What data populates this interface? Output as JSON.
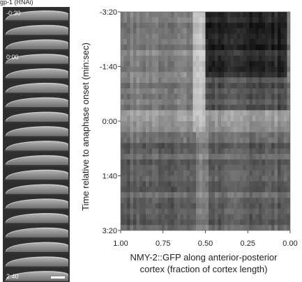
{
  "figure": {
    "corner_label": "gp-1 (RNAi)",
    "strip_timestamps": [
      "-0:30",
      "0:00",
      "2:40"
    ]
  },
  "chart_data": {
    "type": "heatmap",
    "title": "",
    "xlabel": "NMY-2::GFP along anterior-posterior cortex (fraction of cortex length)",
    "xlabel_lines": [
      "NMY-2::GFP along anterior-posterior",
      "cortex (fraction of cortex length)"
    ],
    "ylabel": "Time relative to anaphase onset  (min:sec)",
    "x_ticks": [
      1.0,
      0.75,
      0.5,
      0.25,
      0.0
    ],
    "x_tick_labels": [
      "1.00",
      "0.75",
      "0.50",
      "0.25",
      "0.00"
    ],
    "xlim": [
      1.0,
      0.0
    ],
    "y_ticks": [
      -200,
      -100,
      0,
      100,
      200
    ],
    "y_tick_labels": [
      "-3:20",
      "-1:40",
      "0:00",
      "1:40",
      "3:20"
    ],
    "ylim": [
      -200,
      200
    ],
    "y_units": "seconds",
    "colormap": "grayscale",
    "features": [
      {
        "description": "bright band",
        "x_range": [
          0.58,
          0.5
        ],
        "t_range": [
          -200,
          20
        ]
      },
      {
        "description": "dark region",
        "x_range": [
          0.5,
          0.02
        ],
        "t_range": [
          -200,
          -80
        ]
      },
      {
        "description": "bright band",
        "x_range": [
          1.0,
          0.0
        ],
        "t_range": [
          -20,
          20
        ]
      }
    ]
  },
  "colors": {
    "background": "#ffffff",
    "text": "#222222",
    "strip_bg": "#3a3a3a",
    "scale_bar": "#ffffff"
  }
}
